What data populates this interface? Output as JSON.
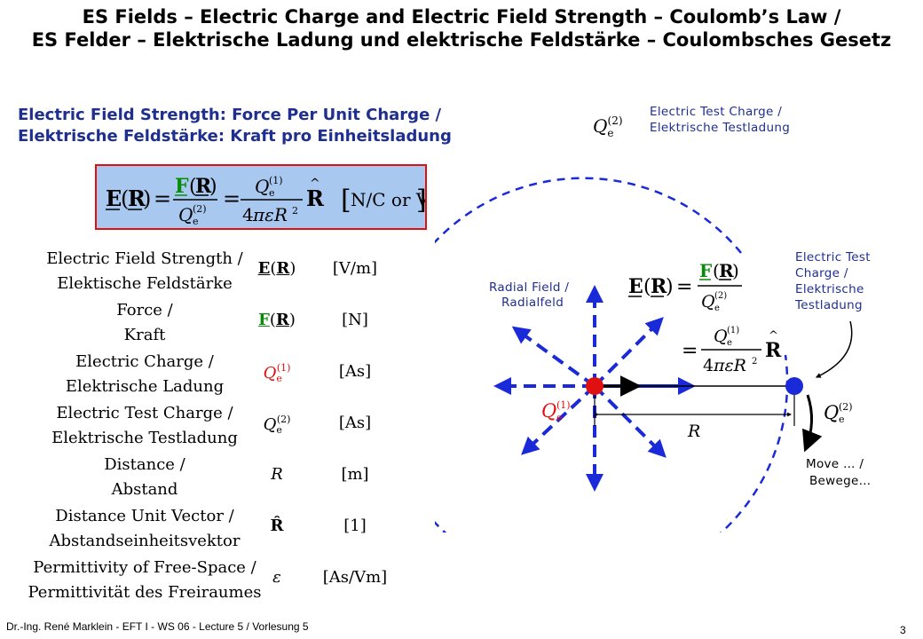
{
  "title_line1": "ES Fields – Electric Charge and Electric Field Strength – Coulomb’s Law /",
  "title_line2": "ES Felder – Elektrische Ladung und elektrische Feldstärke – Coulombsches Gesetz",
  "subtitle_line1": "Electric Field Strength: Force Per Unit Charge /",
  "subtitle_line2": "Elektrische Feldstärke: Kraft pro Einheitsladung",
  "test_charge_top": {
    "line1": "Electric Test Charge /",
    "line2": "Elektrische Testladung"
  },
  "main_formula": {
    "unit": "[N/C or V/m]"
  },
  "table": [
    {
      "label1": "Electric Field Strength /",
      "label2": "Elektische Feldstärke",
      "symbol": "E(R)",
      "unit": "[V/m]"
    },
    {
      "label1": "Force /",
      "label2": "Kraft",
      "symbol": "F(R)",
      "unit": "[N]"
    },
    {
      "label1": "Electric Charge /",
      "label2": "Elektrische Ladung",
      "symbol": "Qe(1)",
      "unit": "[As]"
    },
    {
      "label1": "Electric Test Charge /",
      "label2": "Elektrische Testladung",
      "symbol": "Qe(2)",
      "unit": "[As]"
    },
    {
      "label1": "Distance /",
      "label2": "Abstand",
      "symbol": "R",
      "unit": "[m]"
    },
    {
      "label1": "Distance Unit Vector /",
      "label2": "Abstandseinheitsvektor",
      "symbol": "R̂",
      "unit": "[1]"
    },
    {
      "label1": "Permittivity of Free-Space /",
      "label2": "Permittivität des Freiraumes",
      "symbol": "ε",
      "unit": "[As/Vm]"
    }
  ],
  "diagram": {
    "radial_field": {
      "line1": "Radial Field /",
      "line2": "Radialfeld"
    },
    "test_charge_right": {
      "line1": "Electric Test",
      "line2": "Charge /",
      "line3": "Elektrische",
      "line4": "Testladung"
    },
    "move": {
      "line1": "Move … /",
      "line2": "Bewege…"
    },
    "distance_label": "R"
  },
  "footer": "Dr.-Ing. René Marklein - EFT I - WS 06 - Lecture 5 / Vorlesung 5",
  "page_number": "3",
  "colors": {
    "accent_blue": "#1f2f8f",
    "arrow_blue": "#1a2ad8",
    "charge_red": "#e01010",
    "force_green": "#0a8a0a",
    "box_fill": "#a8c8f0"
  }
}
